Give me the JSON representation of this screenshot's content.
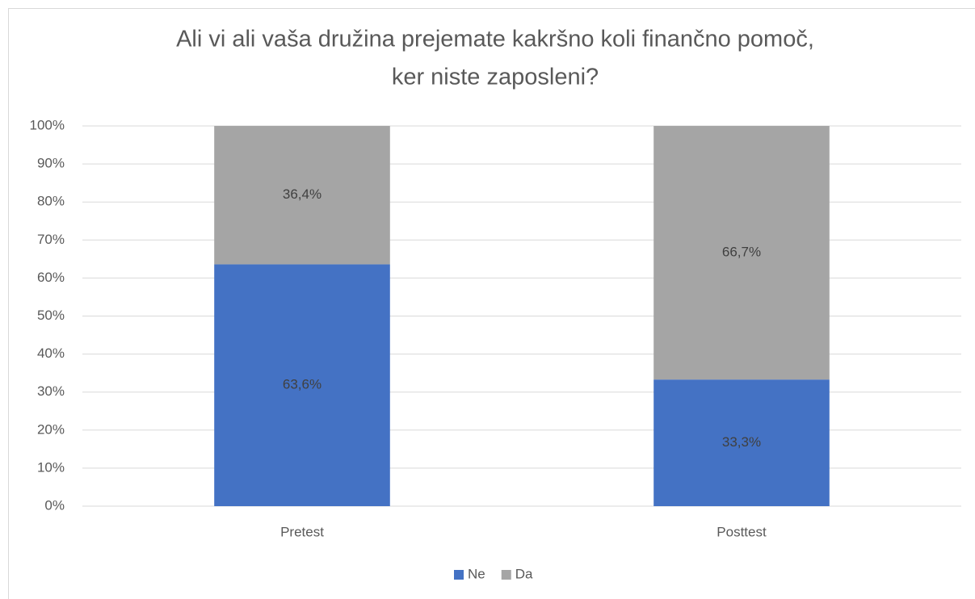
{
  "chart_data": {
    "type": "stacked_bar",
    "title": [
      "Ali vi ali vaša družina prejemate kakršno koli finančno pomoč,",
      "ker niste zaposleni?"
    ],
    "categories": [
      "Pretest",
      "Posttest"
    ],
    "series": [
      {
        "name": "Ne",
        "color": "#4472c4",
        "values": [
          63.6,
          33.3
        ],
        "value_labels": [
          "63,6%",
          "33,3%"
        ]
      },
      {
        "name": "Da",
        "color": "#a5a5a5",
        "values": [
          36.4,
          66.7
        ],
        "value_labels": [
          "36,4%",
          "66,7%"
        ]
      }
    ],
    "ylim": [
      0,
      100
    ],
    "yticks": [
      {
        "value": 0,
        "label": "0%"
      },
      {
        "value": 10,
        "label": "10%"
      },
      {
        "value": 20,
        "label": "20%"
      },
      {
        "value": 30,
        "label": "30%"
      },
      {
        "value": 40,
        "label": "40%"
      },
      {
        "value": 50,
        "label": "50%"
      },
      {
        "value": 60,
        "label": "60%"
      },
      {
        "value": 70,
        "label": "70%"
      },
      {
        "value": 80,
        "label": "80%"
      },
      {
        "value": 90,
        "label": "90%"
      },
      {
        "value": 100,
        "label": "100%"
      }
    ],
    "grid": true,
    "legend": "bottom"
  }
}
